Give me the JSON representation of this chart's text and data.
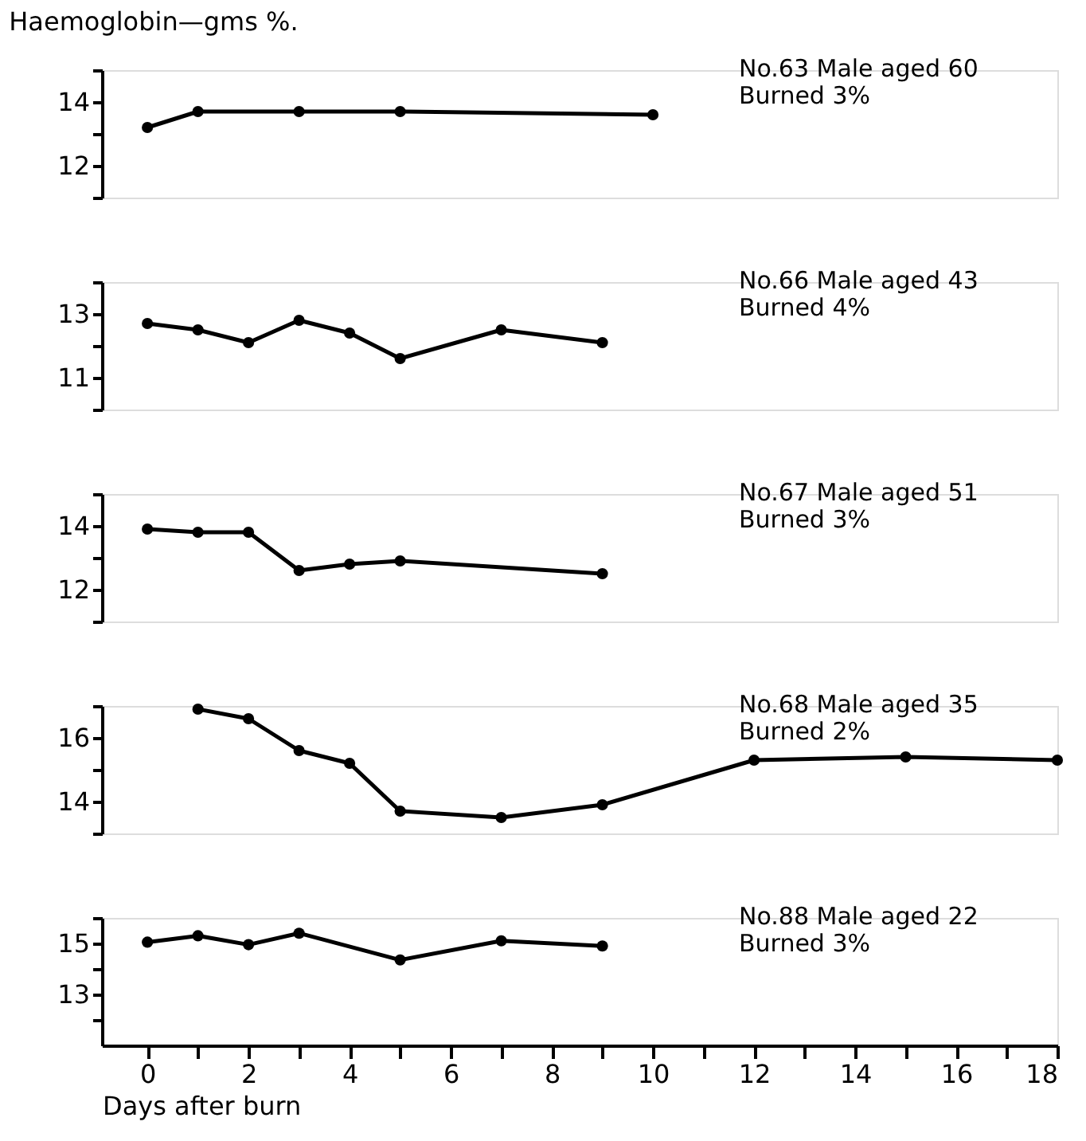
{
  "chart_data": [
    {
      "type": "line",
      "ylabel": "Haemoglobin—gms %.",
      "marker": "circle",
      "line_style": "solid",
      "grid": false,
      "tick_labels": "y",
      "x": [
        0,
        1,
        3,
        5,
        10
      ],
      "xlim": [
        -0.9,
        18
      ],
      "ylim": [
        11,
        15
      ],
      "yticks": [
        {
          "value": 11,
          "label": null
        },
        12,
        {
          "value": 13,
          "label": null
        },
        14,
        {
          "value": 15,
          "label": null
        }
      ],
      "series": [
        {
          "color": "#000000",
          "values": [
            13.2,
            13.7,
            13.7,
            13.7,
            13.6
          ]
        }
      ],
      "annotations": [
        "No.63  Male aged 60",
        "Burned 3%"
      ]
    },
    {
      "type": "line",
      "marker": "circle",
      "line_style": "solid",
      "grid": false,
      "tick_labels": "y",
      "x": [
        0,
        1,
        2,
        3,
        4,
        5,
        7,
        9
      ],
      "xlim": [
        -0.9,
        18
      ],
      "ylim": [
        10,
        14
      ],
      "yticks": [
        {
          "value": 10,
          "label": null
        },
        11,
        {
          "value": 12,
          "label": null
        },
        13,
        {
          "value": 14,
          "label": null
        }
      ],
      "series": [
        {
          "color": "#000000",
          "values": [
            12.7,
            12.5,
            12.1,
            12.8,
            12.4,
            11.6,
            12.5,
            12.1
          ]
        }
      ],
      "annotations": [
        "No.66  Male aged 43",
        "Burned 4%"
      ]
    },
    {
      "type": "line",
      "marker": "circle",
      "line_style": "solid",
      "grid": false,
      "tick_labels": "y",
      "x": [
        0,
        1,
        2,
        3,
        4,
        5,
        9
      ],
      "xlim": [
        -0.9,
        18
      ],
      "ylim": [
        11,
        15
      ],
      "yticks": [
        {
          "value": 11,
          "label": null
        },
        12,
        {
          "value": 13,
          "label": null
        },
        14,
        {
          "value": 15,
          "label": null
        }
      ],
      "series": [
        {
          "color": "#000000",
          "values": [
            13.9,
            13.8,
            13.8,
            12.6,
            12.8,
            12.9,
            12.5
          ]
        }
      ],
      "annotations": [
        "No.67  Male aged 51",
        "Burned 3%"
      ]
    },
    {
      "type": "line",
      "marker": "circle",
      "line_style": "solid",
      "grid": false,
      "tick_labels": "y",
      "x": [
        1,
        2,
        3,
        4,
        5,
        7,
        9,
        12,
        15,
        18
      ],
      "xlim": [
        -0.9,
        18
      ],
      "ylim": [
        13,
        17
      ],
      "yticks": [
        {
          "value": 13,
          "label": null
        },
        14,
        {
          "value": 15,
          "label": null
        },
        16,
        {
          "value": 17,
          "label": null
        }
      ],
      "series": [
        {
          "color": "#000000",
          "values": [
            16.9,
            16.6,
            15.6,
            15.2,
            13.7,
            13.5,
            13.9,
            15.3,
            15.4,
            15.3
          ]
        }
      ],
      "annotations": [
        "No.68  Male aged 35",
        "Burned 2%"
      ]
    },
    {
      "type": "line",
      "xlabel": "Days after burn",
      "marker": "circle",
      "line_style": "solid",
      "grid": false,
      "x": [
        0,
        1,
        2,
        3,
        5,
        7,
        9
      ],
      "xlim": [
        -0.9,
        18
      ],
      "ylim": [
        11,
        16
      ],
      "yticks": [
        {
          "value": 12,
          "label": null
        },
        13,
        {
          "value": 14,
          "label": null
        },
        15,
        {
          "value": 16,
          "label": null
        }
      ],
      "xticks": [
        0,
        {
          "value": 1,
          "label": null
        },
        2,
        {
          "value": 3,
          "label": null
        },
        4,
        {
          "value": 5,
          "label": null
        },
        6,
        {
          "value": 7,
          "label": null
        },
        8,
        {
          "value": 9,
          "label": null
        },
        10,
        {
          "value": 11,
          "label": null
        },
        12,
        {
          "value": 13,
          "label": null
        },
        14,
        {
          "value": 15,
          "label": null
        },
        16,
        {
          "value": 17,
          "label": null
        },
        18
      ],
      "series": [
        {
          "color": "#000000",
          "values": [
            15.05,
            15.3,
            14.95,
            15.4,
            14.35,
            15.1,
            14.9
          ]
        }
      ],
      "annotations": [
        "No.88  Male aged 22",
        "Burned 3%"
      ]
    }
  ]
}
